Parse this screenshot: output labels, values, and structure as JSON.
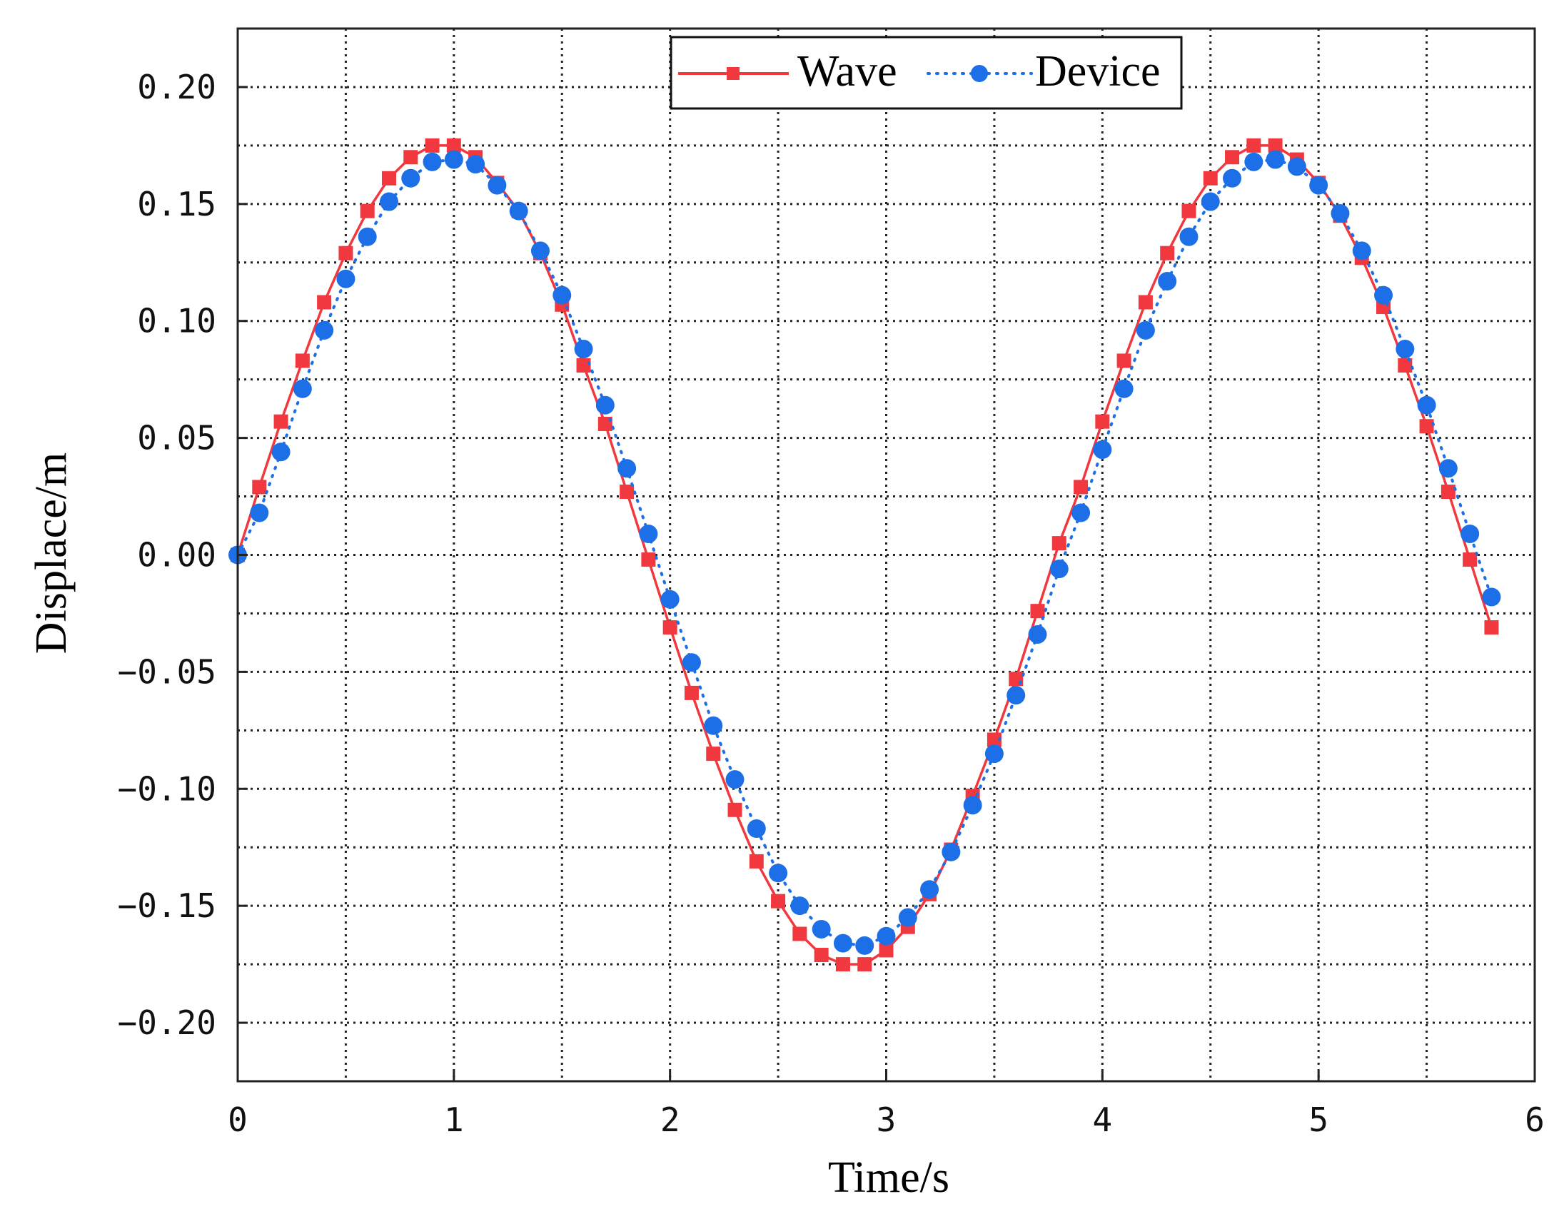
{
  "chart_data": {
    "type": "line",
    "title": "",
    "xlabel": "Time/s",
    "ylabel": "Displace/m",
    "xlim": [
      0,
      6
    ],
    "ylim": [
      -0.225,
      0.225
    ],
    "grid": true,
    "legend_position": "top-center",
    "x_ticks": [
      0,
      1,
      2,
      3,
      4,
      5,
      6
    ],
    "x_tick_labels": [
      "0",
      "1",
      "2",
      "3",
      "4",
      "5",
      "6"
    ],
    "y_ticks": [
      0.2,
      0.15,
      0.1,
      0.05,
      0.0,
      -0.05,
      -0.1,
      -0.15,
      -0.2
    ],
    "y_tick_labels": [
      "0.20",
      "0.15",
      "0.10",
      "0.05",
      "0.00",
      "−0.05",
      "−0.10",
      "−0.15",
      "−0.20"
    ],
    "x": [
      0,
      0.1,
      0.2,
      0.3,
      0.4,
      0.5,
      0.6,
      0.7,
      0.8,
      0.9,
      1.0,
      1.1,
      1.2,
      1.3,
      1.4,
      1.5,
      1.6,
      1.7,
      1.8,
      1.9,
      2.0,
      2.1,
      2.2,
      2.3,
      2.4,
      2.5,
      2.6,
      2.7,
      2.8,
      2.9,
      3.0,
      3.1,
      3.2,
      3.3,
      3.4,
      3.5,
      3.6,
      3.7,
      3.8,
      3.9,
      4.0,
      4.1,
      4.2,
      4.3,
      4.4,
      4.5,
      4.6,
      4.7,
      4.8,
      4.9,
      5.0,
      5.1,
      5.2,
      5.3,
      5.4,
      5.5,
      5.6,
      5.7,
      5.8
    ],
    "series": [
      {
        "name": "Wave",
        "color": "#f0383e",
        "line_style": "solid",
        "marker": "square",
        "values": [
          0.0,
          0.029,
          0.057,
          0.083,
          0.108,
          0.129,
          0.147,
          0.161,
          0.17,
          0.175,
          0.175,
          0.17,
          0.159,
          0.147,
          0.129,
          0.107,
          0.081,
          0.056,
          0.027,
          -0.002,
          -0.031,
          -0.059,
          -0.085,
          -0.109,
          -0.131,
          -0.148,
          -0.162,
          -0.171,
          -0.175,
          -0.175,
          -0.169,
          -0.159,
          -0.145,
          -0.126,
          -0.103,
          -0.079,
          -0.053,
          -0.024,
          0.005,
          0.029,
          0.057,
          0.083,
          0.108,
          0.129,
          0.147,
          0.161,
          0.17,
          0.175,
          0.175,
          0.169,
          0.159,
          0.145,
          0.127,
          0.106,
          0.081,
          0.055,
          0.027,
          -0.002,
          -0.031
        ]
      },
      {
        "name": "Device",
        "color": "#1c6fe6",
        "line_style": "dotted",
        "marker": "circle",
        "values": [
          0.0,
          0.018,
          0.044,
          0.071,
          0.096,
          0.118,
          0.136,
          0.151,
          0.161,
          0.168,
          0.169,
          0.167,
          0.158,
          0.147,
          0.13,
          0.111,
          0.088,
          0.064,
          0.037,
          0.009,
          -0.019,
          -0.046,
          -0.073,
          -0.096,
          -0.117,
          -0.136,
          -0.15,
          -0.16,
          -0.166,
          -0.167,
          -0.163,
          -0.155,
          -0.143,
          -0.127,
          -0.107,
          -0.085,
          -0.06,
          -0.034,
          -0.006,
          0.018,
          0.045,
          0.071,
          0.096,
          0.117,
          0.136,
          0.151,
          0.161,
          0.168,
          0.169,
          0.166,
          0.158,
          0.146,
          0.13,
          0.111,
          0.088,
          0.064,
          0.037,
          0.009,
          -0.018
        ]
      }
    ]
  }
}
